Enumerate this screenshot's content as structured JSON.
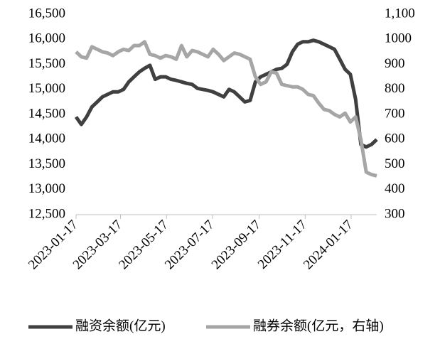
{
  "chart_data": {
    "type": "line",
    "x": [
      "2023-01-17",
      "2023-01-24",
      "2023-01-31",
      "2023-02-07",
      "2023-02-14",
      "2023-02-21",
      "2023-02-28",
      "2023-03-07",
      "2023-03-14",
      "2023-03-21",
      "2023-03-28",
      "2023-04-04",
      "2023-04-11",
      "2023-04-18",
      "2023-04-25",
      "2023-05-02",
      "2023-05-09",
      "2023-05-16",
      "2023-05-23",
      "2023-05-30",
      "2023-06-06",
      "2023-06-13",
      "2023-06-20",
      "2023-06-27",
      "2023-07-04",
      "2023-07-11",
      "2023-07-18",
      "2023-07-25",
      "2023-08-01",
      "2023-08-08",
      "2023-08-15",
      "2023-08-22",
      "2023-08-29",
      "2023-09-05",
      "2023-09-12",
      "2023-09-19",
      "2023-09-26",
      "2023-10-03",
      "2023-10-10",
      "2023-10-17",
      "2023-10-24",
      "2023-10-31",
      "2023-11-07",
      "2023-11-14",
      "2023-11-21",
      "2023-11-28",
      "2023-12-05",
      "2023-12-12",
      "2023-12-19",
      "2023-12-26",
      "2024-01-02",
      "2024-01-09",
      "2024-01-16",
      "2024-01-23",
      "2024-01-30",
      "2024-02-06",
      "2024-02-13",
      "2024-02-20"
    ],
    "series": [
      {
        "name": "融资余额(亿元)",
        "color": "#404040",
        "values": [
          14450,
          14300,
          14450,
          14650,
          14750,
          14850,
          14900,
          14950,
          14950,
          15000,
          15150,
          15250,
          15350,
          15420,
          15480,
          15200,
          15250,
          15250,
          15200,
          15180,
          15150,
          15120,
          15100,
          15020,
          15000,
          14980,
          14950,
          14900,
          14850,
          15000,
          14950,
          14850,
          14750,
          14780,
          15150,
          15250,
          15300,
          15350,
          15400,
          15420,
          15500,
          15750,
          15900,
          15950,
          15950,
          15980,
          15950,
          15900,
          15850,
          15800,
          15600,
          15400,
          15300,
          14800,
          13900,
          13850,
          13900,
          14000
        ]
      },
      {
        "name": "融券余额(亿元，右轴)",
        "color": "#a6a6a6",
        "axis": "y2",
        "values": [
          950,
          930,
          925,
          970,
          960,
          950,
          945,
          935,
          950,
          960,
          955,
          975,
          975,
          990,
          940,
          935,
          925,
          935,
          930,
          920,
          975,
          930,
          955,
          950,
          940,
          930,
          960,
          940,
          915,
          930,
          945,
          940,
          930,
          920,
          850,
          820,
          830,
          870,
          865,
          820,
          815,
          810,
          810,
          800,
          780,
          775,
          745,
          720,
          715,
          700,
          690,
          705,
          670,
          690,
          600,
          470,
          460,
          455
        ]
      }
    ],
    "xlim": [
      "2023-01-17",
      "2024-02-20"
    ],
    "xticks": [
      "2023-01-17",
      "2023-03-17",
      "2023-05-17",
      "2023-07-17",
      "2023-09-17",
      "2023-11-17",
      "2024-01-17"
    ],
    "ylim": [
      12500,
      16500
    ],
    "yticks": [
      {
        "value": 12500,
        "label": "12,500"
      },
      {
        "value": 13000,
        "label": "13,000"
      },
      {
        "value": 13500,
        "label": "13,500"
      },
      {
        "value": 14000,
        "label": "14,000"
      },
      {
        "value": 14500,
        "label": "14,500"
      },
      {
        "value": 15000,
        "label": "15,000"
      },
      {
        "value": 15500,
        "label": "15,500"
      },
      {
        "value": 16000,
        "label": "16,000"
      },
      {
        "value": 16500,
        "label": "16,500"
      }
    ],
    "y2lim": [
      300,
      1100
    ],
    "y2ticks": [
      300,
      400,
      500,
      600,
      700,
      800,
      900,
      1000,
      {
        "value": 1100,
        "label": "1,100"
      }
    ],
    "legend": "bottom"
  }
}
